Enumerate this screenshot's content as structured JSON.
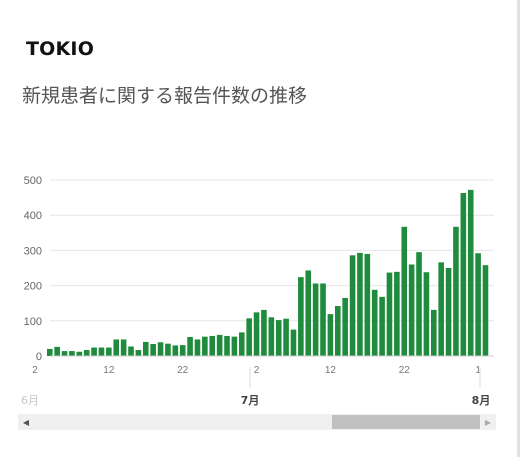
{
  "header": {
    "region": "TOKIO",
    "title": "新規患者に関する報告件数の推移"
  },
  "chart_data": {
    "type": "bar",
    "title": "新規患者に関する報告件数の推移",
    "y_ticks": [
      0,
      100,
      200,
      300,
      400,
      500
    ],
    "ylim": [
      0,
      500
    ],
    "x_day_ticks": [
      "2",
      "12",
      "22",
      "2",
      "12",
      "22",
      "1"
    ],
    "x_month_labels": [
      "6月",
      "7月",
      "8月"
    ],
    "grid": true,
    "legend": "none",
    "bar_color": "#1e8c3c",
    "series": [
      {
        "values": [
          20,
          26,
          14,
          14,
          12,
          17,
          24,
          24,
          24,
          47,
          47,
          27,
          17,
          40,
          34,
          39,
          35,
          30,
          31,
          54,
          47,
          55,
          57,
          60,
          57,
          55,
          67,
          107,
          124,
          131,
          110,
          102,
          106,
          75,
          224,
          243,
          206,
          206,
          119,
          142,
          165,
          286,
          293,
          290,
          188,
          168,
          237,
          239,
          367,
          260,
          295,
          238,
          131,
          266,
          250,
          367,
          463,
          472,
          292,
          258
        ]
      }
    ]
  },
  "scrollbar": {
    "left_arrow": "◀",
    "right_arrow": "▶"
  }
}
